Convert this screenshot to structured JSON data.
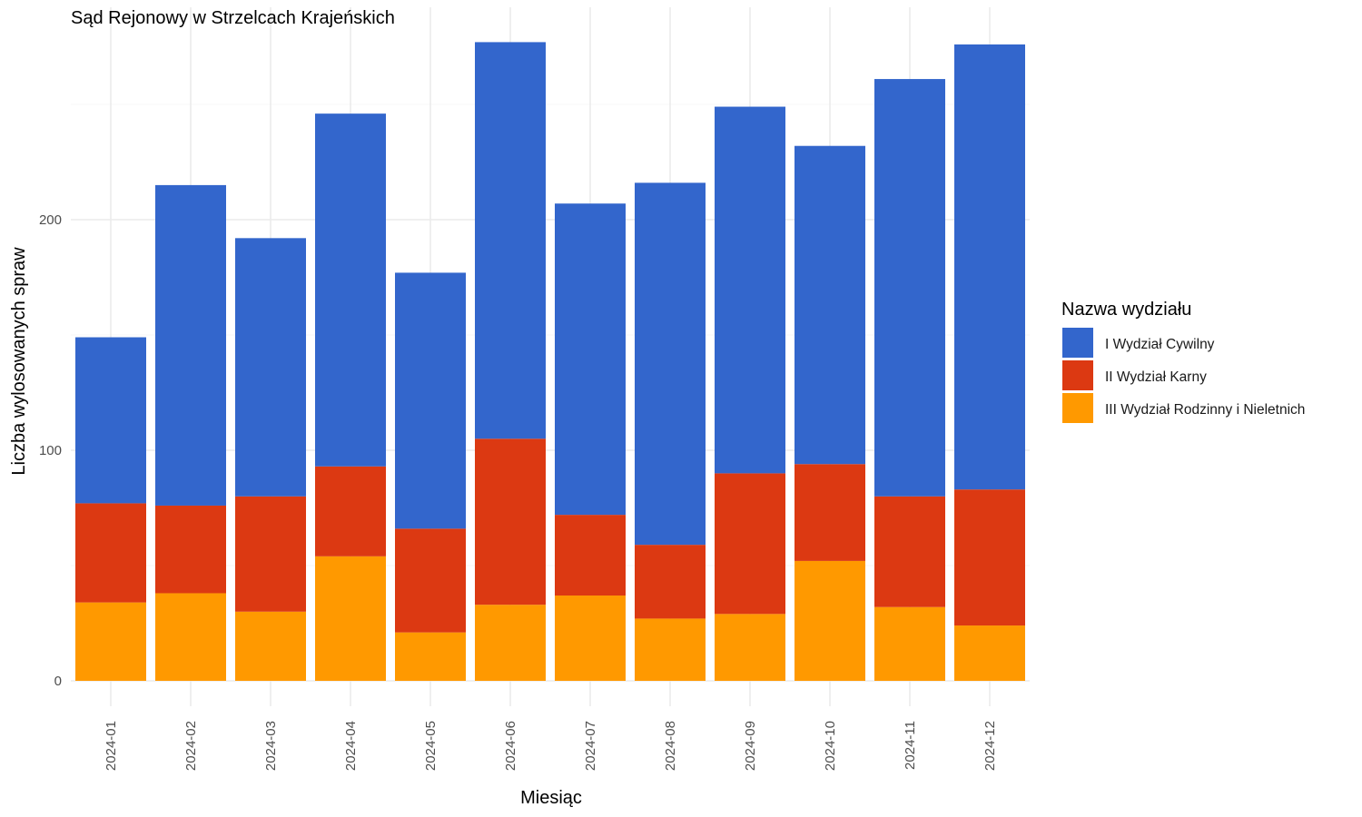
{
  "chart_data": {
    "type": "bar",
    "stacked": true,
    "title": "Sąd Rejonowy w Strzelcach Krajeńskich",
    "xlabel": "Miesiąc",
    "ylabel": "Liczba wylosowanych spraw",
    "ylim": [
      0,
      280
    ],
    "yticks": [
      0,
      100,
      200
    ],
    "grid": true,
    "legend_title": "Nazwa wydziału",
    "legend_position": "right",
    "categories": [
      "2024-01",
      "2024-02",
      "2024-03",
      "2024-04",
      "2024-05",
      "2024-06",
      "2024-07",
      "2024-08",
      "2024-09",
      "2024-10",
      "2024-11",
      "2024-12"
    ],
    "series": [
      {
        "name": "I Wydział Cywilny",
        "color": "#3366cc",
        "values": [
          72,
          139,
          112,
          153,
          111,
          172,
          135,
          157,
          159,
          138,
          181,
          193
        ]
      },
      {
        "name": "II Wydział Karny",
        "color": "#dc3912",
        "values": [
          43,
          38,
          50,
          39,
          45,
          72,
          35,
          32,
          61,
          42,
          48,
          59
        ]
      },
      {
        "name": "III Wydział Rodzinny i Nieletnich",
        "color": "#ff9900",
        "values": [
          34,
          38,
          30,
          54,
          21,
          33,
          37,
          27,
          29,
          52,
          32,
          24
        ]
      }
    ]
  }
}
